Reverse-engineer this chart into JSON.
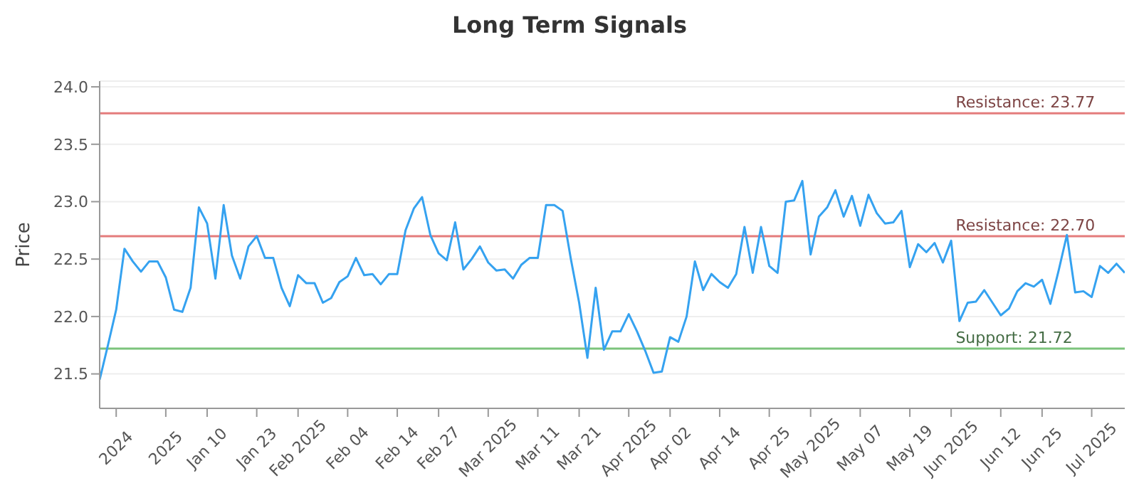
{
  "chart_data": {
    "type": "line",
    "title": "Long Term Signals",
    "ylabel": "Price",
    "categories": [
      null,
      null,
      "2024",
      null,
      null,
      null,
      null,
      null,
      "2025",
      null,
      null,
      null,
      null,
      "Jan 10",
      null,
      null,
      null,
      null,
      null,
      "Jan 23",
      null,
      null,
      null,
      null,
      "Feb 2025",
      null,
      null,
      null,
      null,
      null,
      "Feb 04",
      null,
      null,
      null,
      null,
      null,
      "Feb 14",
      null,
      null,
      null,
      null,
      "Feb 27",
      null,
      null,
      null,
      null,
      null,
      "Mar 2025",
      null,
      null,
      null,
      null,
      null,
      "Mar 11",
      null,
      null,
      null,
      null,
      "Mar 21",
      null,
      null,
      null,
      null,
      null,
      "Apr 2025",
      null,
      null,
      null,
      null,
      "Apr 02",
      null,
      null,
      null,
      null,
      null,
      "Apr 14",
      null,
      null,
      null,
      null,
      null,
      "Apr 25",
      null,
      null,
      null,
      null,
      "May 2025",
      null,
      null,
      null,
      null,
      null,
      "May 07",
      null,
      null,
      null,
      null,
      null,
      "May 19",
      null,
      null,
      null,
      null,
      "Jun 2025",
      null,
      null,
      null,
      null,
      null,
      "Jun 12",
      null,
      null,
      null,
      null,
      "Jun 25",
      null,
      null,
      null,
      null,
      null,
      "Jul 2025",
      null,
      null,
      null,
      null
    ],
    "series": [
      {
        "color": "#35a2f0",
        "values": [
          21.45,
          21.75,
          22.06,
          22.59,
          22.48,
          22.39,
          22.48,
          22.48,
          22.34,
          22.06,
          22.04,
          22.25,
          22.95,
          22.81,
          22.33,
          22.97,
          22.53,
          22.33,
          22.61,
          22.7,
          22.51,
          22.51,
          22.25,
          22.09,
          22.36,
          22.29,
          22.29,
          22.12,
          22.16,
          22.3,
          22.35,
          22.51,
          22.36,
          22.37,
          22.28,
          22.37,
          22.37,
          22.75,
          22.94,
          23.04,
          22.71,
          22.55,
          22.49,
          22.82,
          22.41,
          22.5,
          22.61,
          22.47,
          22.4,
          22.41,
          22.33,
          22.45,
          22.51,
          22.51,
          22.97,
          22.97,
          22.92,
          22.5,
          22.12,
          21.64,
          22.25,
          21.71,
          21.87,
          21.87,
          22.02,
          21.87,
          21.7,
          21.51,
          21.52,
          21.82,
          21.78,
          22.0,
          22.48,
          22.23,
          22.37,
          22.3,
          22.25,
          22.37,
          22.78,
          22.38,
          22.78,
          22.44,
          22.38,
          23.0,
          23.01,
          23.18,
          22.54,
          22.87,
          22.95,
          23.1,
          22.87,
          23.05,
          22.79,
          23.06,
          22.9,
          22.81,
          22.82,
          22.92,
          22.43,
          22.63,
          22.56,
          22.64,
          22.47,
          22.66,
          21.96,
          22.12,
          22.13,
          22.23,
          22.12,
          22.01,
          22.07,
          22.22,
          22.29,
          22.26,
          22.32,
          22.11,
          22.4,
          22.71,
          22.21,
          22.22,
          22.17,
          22.44,
          22.38,
          22.46,
          22.38
        ]
      }
    ],
    "ylim": [
      21.2,
      24.05
    ],
    "yticks": [
      {
        "value": 21.5,
        "label": "21.5"
      },
      {
        "value": 22,
        "label": "22.0"
      },
      {
        "value": 22.5,
        "label": "22.5"
      },
      {
        "value": 23,
        "label": "23.0"
      },
      {
        "value": 23.5,
        "label": "23.5"
      },
      {
        "value": 24,
        "label": "24.0"
      }
    ],
    "ref_lines": [
      {
        "axis": "y",
        "value": 23.77,
        "label": "Resistance: 23.77",
        "color": "#e47c7c"
      },
      {
        "axis": "y",
        "value": 22.7,
        "label": "Resistance: 22.70",
        "color": "#e47c7c"
      },
      {
        "axis": "y",
        "value": 21.72,
        "label": "Support: 21.72",
        "color": "#7cc47c"
      }
    ],
    "grid": "y",
    "marker": "none",
    "line_style": "solid",
    "legend": false
  }
}
